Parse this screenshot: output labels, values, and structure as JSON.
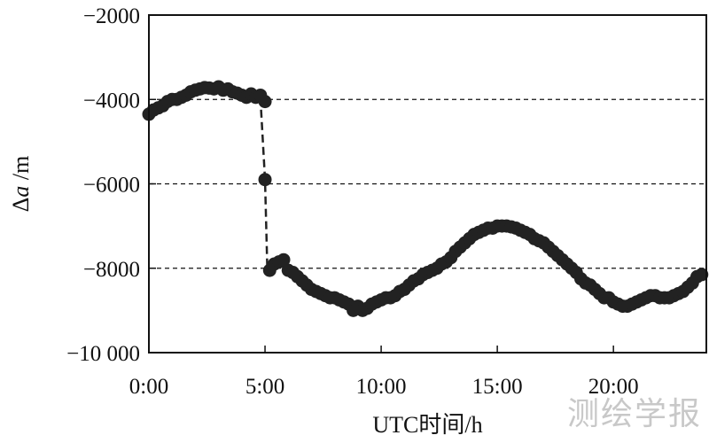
{
  "chart_data": {
    "type": "scatter",
    "xlabel": "UTC时间/h",
    "ylabel_symbol": "Δ",
    "ylabel_var": "a",
    "ylabel_unit": " /m",
    "xlim": [
      0,
      24
    ],
    "ylim": [
      -10000,
      -2000
    ],
    "x_ticks": [
      {
        "value": 0,
        "label": "0:00"
      },
      {
        "value": 5,
        "label": "5:00"
      },
      {
        "value": 10,
        "label": "10:00"
      },
      {
        "value": 15,
        "label": "15:00"
      },
      {
        "value": 20,
        "label": "20:00"
      }
    ],
    "y_ticks": [
      {
        "value": -2000,
        "label": "−2000"
      },
      {
        "value": -4000,
        "label": "−4000"
      },
      {
        "value": -6000,
        "label": "−6000"
      },
      {
        "value": -8000,
        "label": "−8000"
      },
      {
        "value": -10000,
        "label": "−10 000"
      }
    ],
    "grid_y": [
      -4000,
      -6000,
      -8000
    ],
    "grid_style": "dashed",
    "marker_color": "#222222",
    "series": [
      {
        "points": [
          [
            0.0,
            -4350
          ],
          [
            0.2,
            -4250
          ],
          [
            0.4,
            -4200
          ],
          [
            0.6,
            -4150
          ],
          [
            0.8,
            -4050
          ],
          [
            1.0,
            -4000
          ],
          [
            1.2,
            -4000
          ],
          [
            1.4,
            -3950
          ],
          [
            1.6,
            -3900
          ],
          [
            1.8,
            -3820
          ],
          [
            2.0,
            -3780
          ],
          [
            2.2,
            -3750
          ],
          [
            2.4,
            -3720
          ],
          [
            2.6,
            -3730
          ],
          [
            2.8,
            -3750
          ],
          [
            3.0,
            -3700
          ],
          [
            3.2,
            -3780
          ],
          [
            3.4,
            -3750
          ],
          [
            3.6,
            -3820
          ],
          [
            3.8,
            -3850
          ],
          [
            4.0,
            -3900
          ],
          [
            4.2,
            -3950
          ],
          [
            4.4,
            -3870
          ],
          [
            4.6,
            -3950
          ],
          [
            4.8,
            -3900
          ],
          [
            5.0,
            -4050
          ],
          [
            5.0,
            -5900
          ],
          [
            5.2,
            -8050
          ],
          [
            5.4,
            -7900
          ],
          [
            5.6,
            -7850
          ],
          [
            5.8,
            -7800
          ],
          [
            6.0,
            -8050
          ],
          [
            6.2,
            -8100
          ],
          [
            6.4,
            -8200
          ],
          [
            6.6,
            -8300
          ],
          [
            6.8,
            -8400
          ],
          [
            7.0,
            -8500
          ],
          [
            7.2,
            -8550
          ],
          [
            7.4,
            -8600
          ],
          [
            7.6,
            -8650
          ],
          [
            7.8,
            -8700
          ],
          [
            8.0,
            -8700
          ],
          [
            8.2,
            -8750
          ],
          [
            8.4,
            -8800
          ],
          [
            8.6,
            -8850
          ],
          [
            8.8,
            -9000
          ],
          [
            9.0,
            -8900
          ],
          [
            9.2,
            -9000
          ],
          [
            9.4,
            -8950
          ],
          [
            9.6,
            -8850
          ],
          [
            9.8,
            -8800
          ],
          [
            10.0,
            -8750
          ],
          [
            10.2,
            -8700
          ],
          [
            10.4,
            -8700
          ],
          [
            10.6,
            -8650
          ],
          [
            10.8,
            -8550
          ],
          [
            11.0,
            -8500
          ],
          [
            11.2,
            -8400
          ],
          [
            11.4,
            -8300
          ],
          [
            11.6,
            -8250
          ],
          [
            11.8,
            -8150
          ],
          [
            12.0,
            -8100
          ],
          [
            12.2,
            -8050
          ],
          [
            12.4,
            -8000
          ],
          [
            12.6,
            -7900
          ],
          [
            12.8,
            -7850
          ],
          [
            13.0,
            -7750
          ],
          [
            13.2,
            -7600
          ],
          [
            13.4,
            -7500
          ],
          [
            13.6,
            -7400
          ],
          [
            13.8,
            -7300
          ],
          [
            14.0,
            -7200
          ],
          [
            14.2,
            -7150
          ],
          [
            14.4,
            -7100
          ],
          [
            14.6,
            -7050
          ],
          [
            14.8,
            -7050
          ],
          [
            15.0,
            -7000
          ],
          [
            15.2,
            -7000
          ],
          [
            15.4,
            -7000
          ],
          [
            15.6,
            -7020
          ],
          [
            15.8,
            -7050
          ],
          [
            16.0,
            -7100
          ],
          [
            16.2,
            -7150
          ],
          [
            16.4,
            -7200
          ],
          [
            16.6,
            -7300
          ],
          [
            16.8,
            -7350
          ],
          [
            17.0,
            -7400
          ],
          [
            17.2,
            -7500
          ],
          [
            17.4,
            -7600
          ],
          [
            17.6,
            -7700
          ],
          [
            17.8,
            -7800
          ],
          [
            18.0,
            -7900
          ],
          [
            18.2,
            -8000
          ],
          [
            18.4,
            -8100
          ],
          [
            18.6,
            -8250
          ],
          [
            18.8,
            -8350
          ],
          [
            19.0,
            -8400
          ],
          [
            19.2,
            -8500
          ],
          [
            19.4,
            -8600
          ],
          [
            19.6,
            -8700
          ],
          [
            19.8,
            -8700
          ],
          [
            20.0,
            -8800
          ],
          [
            20.2,
            -8850
          ],
          [
            20.4,
            -8900
          ],
          [
            20.6,
            -8900
          ],
          [
            20.8,
            -8850
          ],
          [
            21.0,
            -8800
          ],
          [
            21.2,
            -8750
          ],
          [
            21.4,
            -8700
          ],
          [
            21.6,
            -8650
          ],
          [
            21.8,
            -8650
          ],
          [
            22.0,
            -8700
          ],
          [
            22.2,
            -8700
          ],
          [
            22.4,
            -8700
          ],
          [
            22.6,
            -8650
          ],
          [
            22.8,
            -8600
          ],
          [
            23.0,
            -8550
          ],
          [
            23.2,
            -8450
          ],
          [
            23.4,
            -8350
          ],
          [
            23.6,
            -8200
          ],
          [
            23.8,
            -8150
          ]
        ],
        "dashed_connector": [
          [
            4.8,
            -3950
          ],
          [
            5.0,
            -5900
          ],
          [
            5.1,
            -8050
          ]
        ]
      }
    ]
  },
  "watermark": "测绘学报"
}
